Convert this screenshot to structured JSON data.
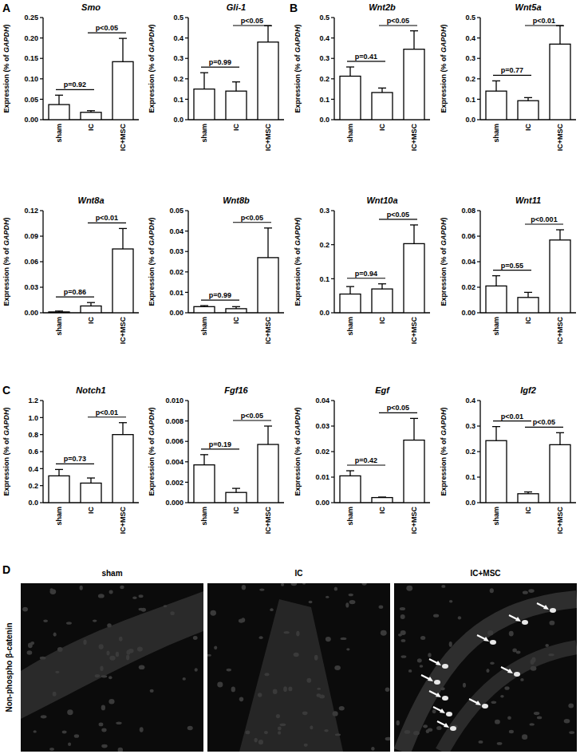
{
  "panel_labels": [
    "A",
    "B",
    "C",
    "D"
  ],
  "chart_data": [
    {
      "type": "bar",
      "title": "Smo",
      "y_label": "Expression (% of GAPDH)",
      "categories": [
        "sham",
        "IC",
        "IC+MSC"
      ],
      "values": [
        0.037,
        0.018,
        0.142
      ],
      "errors": [
        0.023,
        0.004,
        0.057
      ],
      "color": "#ffffff",
      "ylim": [
        0,
        0.25
      ],
      "yticks": [
        {
          "value": 0,
          "label": "0.00"
        },
        {
          "value": 0.05,
          "label": "0.05"
        },
        {
          "value": 0.1,
          "label": "0.10"
        },
        {
          "value": 0.15,
          "label": "0.15"
        },
        {
          "value": 0.2,
          "label": "0.20"
        },
        {
          "value": 0.25,
          "label": "0.25"
        }
      ],
      "annotations": [
        {
          "text": "p=0.92",
          "categories": [
            "sham",
            "IC"
          ]
        },
        {
          "text": "p<0.05",
          "categories": [
            "IC",
            "IC+MSC"
          ]
        }
      ]
    },
    {
      "type": "bar",
      "title": "Gli-1",
      "y_label": "Expression (% of GAPDH)",
      "categories": [
        "sham",
        "IC",
        "IC+MSC"
      ],
      "values": [
        0.15,
        0.14,
        0.38
      ],
      "errors": [
        0.08,
        0.045,
        0.08
      ],
      "color": "#ffffff",
      "ylim": [
        0,
        0.5
      ],
      "yticks": [
        {
          "value": 0,
          "label": "0.0"
        },
        0.1,
        0.2,
        0.3,
        0.4,
        0.5
      ],
      "annotations": [
        {
          "text": "p=0.99",
          "categories": [
            "sham",
            "IC"
          ]
        },
        {
          "text": "p<0.05",
          "categories": [
            "IC",
            "IC+MSC"
          ]
        }
      ]
    },
    {
      "type": "bar",
      "title": "Wnt2b",
      "y_label": "Expression (% of GAPDH)",
      "categories": [
        "sham",
        "IC",
        "IC+MSC"
      ],
      "values": [
        0.213,
        0.133,
        0.345
      ],
      "errors": [
        0.045,
        0.022,
        0.09
      ],
      "color": "#ffffff",
      "ylim": [
        0,
        0.5
      ],
      "yticks": [
        {
          "value": 0,
          "label": "0.0"
        },
        0.1,
        0.2,
        0.3,
        0.4,
        0.5
      ],
      "annotations": [
        {
          "text": "p=0.41",
          "categories": [
            "sham",
            "IC"
          ]
        },
        {
          "text": "p<0.05",
          "categories": [
            "IC",
            "IC+MSC"
          ]
        }
      ]
    },
    {
      "type": "bar",
      "title": "Wnt5a",
      "y_label": "Expression (% of GAPDH)",
      "categories": [
        "sham",
        "IC",
        "IC+MSC"
      ],
      "values": [
        0.14,
        0.093,
        0.37
      ],
      "errors": [
        0.05,
        0.015,
        0.09
      ],
      "color": "#ffffff",
      "ylim": [
        0,
        0.5
      ],
      "yticks": [
        {
          "value": 0,
          "label": "0.0"
        },
        0.1,
        0.2,
        0.3,
        0.4,
        0.5
      ],
      "annotations": [
        {
          "text": "p=0.77",
          "categories": [
            "sham",
            "IC"
          ]
        },
        {
          "text": "p<0.01",
          "categories": [
            "IC",
            "IC+MSC"
          ]
        }
      ]
    },
    {
      "type": "bar",
      "title": "Wnt8a",
      "y_label": "Expression (% of GAPDH)",
      "categories": [
        "sham",
        "IC",
        "IC+MSC"
      ],
      "values": [
        0.001,
        0.008,
        0.075
      ],
      "errors": [
        0.001,
        0.004,
        0.024
      ],
      "color": "#ffffff",
      "ylim": [
        0,
        0.12
      ],
      "yticks": [
        {
          "value": 0,
          "label": "0.00"
        },
        0.03,
        0.06,
        0.09,
        0.12
      ],
      "annotations": [
        {
          "text": "p=0.86",
          "categories": [
            "sham",
            "IC"
          ]
        },
        {
          "text": "p<0.01",
          "categories": [
            "IC",
            "IC+MSC"
          ]
        }
      ]
    },
    {
      "type": "bar",
      "title": "Wnt8b",
      "y_label": "Expression (% of GAPDH)",
      "categories": [
        "sham",
        "IC",
        "IC+MSC"
      ],
      "values": [
        0.003,
        0.002,
        0.027
      ],
      "errors": [
        0.0005,
        0.001,
        0.0145
      ],
      "color": "#ffffff",
      "ylim": [
        0,
        0.05
      ],
      "yticks": [
        {
          "value": 0,
          "label": "0.00"
        },
        0.01,
        0.02,
        0.03,
        0.04,
        0.05
      ],
      "annotations": [
        {
          "text": "p=0.99",
          "categories": [
            "sham",
            "IC"
          ]
        },
        {
          "text": "p<0.05",
          "categories": [
            "IC",
            "IC+MSC"
          ]
        }
      ]
    },
    {
      "type": "bar",
      "title": "Wnt10a",
      "y_label": "Expression (% of GAPDH)",
      "categories": [
        "sham",
        "IC",
        "IC+MSC"
      ],
      "values": [
        0.055,
        0.07,
        0.203
      ],
      "errors": [
        0.022,
        0.015,
        0.055
      ],
      "color": "#ffffff",
      "ylim": [
        0,
        0.3
      ],
      "yticks": [
        {
          "value": 0,
          "label": "0.0"
        },
        0.1,
        0.2,
        0.3
      ],
      "annotations": [
        {
          "text": "p=0.94",
          "categories": [
            "sham",
            "IC"
          ]
        },
        {
          "text": "p<0.05",
          "categories": [
            "IC",
            "IC+MSC"
          ]
        }
      ]
    },
    {
      "type": "bar",
      "title": "Wnt11",
      "y_label": "Expression (% of GAPDH)",
      "categories": [
        "sham",
        "IC",
        "IC+MSC"
      ],
      "values": [
        0.021,
        0.012,
        0.057
      ],
      "errors": [
        0.008,
        0.004,
        0.008
      ],
      "color": "#ffffff",
      "ylim": [
        0,
        0.08
      ],
      "yticks": [
        {
          "value": 0,
          "label": "0.00"
        },
        0.02,
        0.04,
        0.06,
        0.08
      ],
      "annotations": [
        {
          "text": "p=0.55",
          "categories": [
            "sham",
            "IC"
          ]
        },
        {
          "text": "p<0.001",
          "categories": [
            "IC",
            "IC+MSC"
          ]
        }
      ]
    },
    {
      "type": "bar",
      "title": "Notch1",
      "y_label": "Expression (% of GAPDH)",
      "categories": [
        "sham",
        "IC",
        "IC+MSC"
      ],
      "values": [
        0.315,
        0.23,
        0.8
      ],
      "errors": [
        0.075,
        0.06,
        0.14
      ],
      "color": "#ffffff",
      "ylim": [
        0,
        1.2
      ],
      "yticks": [
        {
          "value": 0,
          "label": "0.0"
        },
        0.2,
        0.4,
        0.6,
        0.8,
        {
          "value": 1,
          "label": "1.0"
        },
        1.2
      ],
      "annotations": [
        {
          "text": "p=0.73",
          "categories": [
            "sham",
            "IC"
          ]
        },
        {
          "text": "p<0.01",
          "categories": [
            "IC",
            "IC+MSC"
          ]
        }
      ]
    },
    {
      "type": "bar",
      "title": "Fgf16",
      "y_label": "Expression (% of GAPDH)",
      "categories": [
        "sham",
        "IC",
        "IC+MSC"
      ],
      "values": [
        0.0037,
        0.001,
        0.0057
      ],
      "errors": [
        0.001,
        0.0004,
        0.0018
      ],
      "color": "#ffffff",
      "ylim": [
        0,
        0.01
      ],
      "yticks": [
        {
          "value": 0,
          "label": "0.000"
        },
        0.002,
        0.004,
        0.006,
        0.008,
        {
          "value": 0.01,
          "label": "0.010"
        }
      ],
      "annotations": [
        {
          "text": "p=0.19",
          "categories": [
            "sham",
            "IC"
          ]
        },
        {
          "text": "p<0.05",
          "categories": [
            "IC",
            "IC+MSC"
          ]
        }
      ]
    },
    {
      "type": "bar",
      "title": "Egf",
      "y_label": "Expression (% of GAPDH)",
      "categories": [
        "sham",
        "IC",
        "IC+MSC"
      ],
      "values": [
        0.0105,
        0.002,
        0.0245
      ],
      "errors": [
        0.002,
        0.0002,
        0.0085
      ],
      "color": "#ffffff",
      "ylim": [
        0,
        0.04
      ],
      "yticks": [
        {
          "value": 0,
          "label": "0.00"
        },
        0.01,
        0.02,
        0.03,
        0.04
      ],
      "annotations": [
        {
          "text": "p=0.42",
          "categories": [
            "sham",
            "IC"
          ]
        },
        {
          "text": "p<0.05",
          "categories": [
            "IC",
            "IC+MSC"
          ]
        }
      ]
    },
    {
      "type": "bar",
      "title": "Igf2",
      "y_label": "Expression (% of GAPDH)",
      "categories": [
        "sham",
        "IC",
        "IC+MSC"
      ],
      "values": [
        0.243,
        0.035,
        0.227
      ],
      "errors": [
        0.055,
        0.007,
        0.047
      ],
      "color": "#ffffff",
      "ylim": [
        0,
        0.4
      ],
      "yticks": [
        {
          "value": 0,
          "label": "0.0"
        },
        0.1,
        0.2,
        0.3,
        0.4
      ],
      "annotations": [
        {
          "text": "p<0.01",
          "categories": [
            "sham",
            "IC"
          ]
        },
        {
          "text": "p<0.05",
          "categories": [
            "IC",
            "IC+MSC"
          ]
        }
      ]
    }
  ],
  "images": {
    "row_label": "Non-phospho β-catenin",
    "columns": [
      "sham",
      "IC",
      "IC+MSC"
    ]
  }
}
